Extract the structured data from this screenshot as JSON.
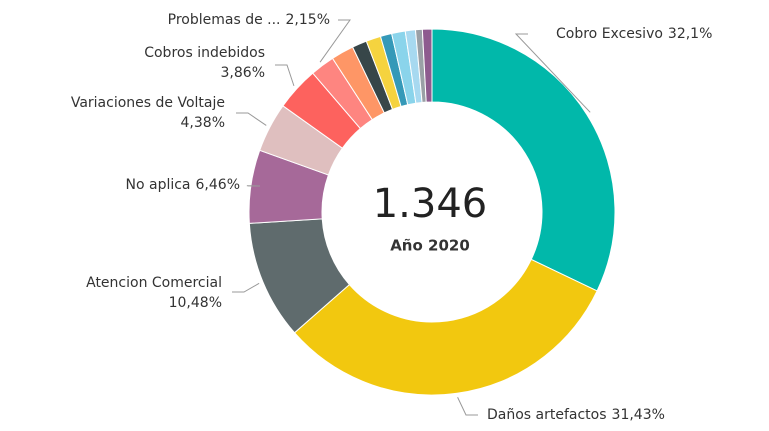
{
  "chart_data": {
    "type": "donut",
    "center_text": "1.346",
    "center_subtitle": "Año 2020",
    "categories": [
      "Cobro Excesivo",
      "Daños artefactos",
      "Atencion Comercial",
      "No aplica",
      "Variaciones de Voltaje",
      "Cobros indebidos",
      "Problemas de ...",
      null,
      null,
      null,
      null,
      null,
      null,
      null,
      null
    ],
    "values": [
      32.1,
      31.43,
      10.48,
      6.46,
      4.38,
      3.86,
      2.15,
      2.0,
      1.3,
      1.3,
      1.0,
      1.2,
      0.9,
      0.6,
      0.84
    ],
    "value_labels": [
      "32,1%",
      "31,43%",
      "10,48%",
      "6,46%",
      "4,38%",
      "3,86%",
      "2,15%",
      null,
      null,
      null,
      null,
      null,
      null,
      null,
      null
    ],
    "colors": [
      "#01b8aa",
      "#f2c80f",
      "#5f6b6d",
      "#a66999",
      "#dfbfbf",
      "#fd625e",
      "#fe8580",
      "#fe9666",
      "#374649",
      "#f5d33f",
      "#3599b8",
      "#8ad4eb",
      "#a7d9f0",
      "#9aa0a6",
      "#8e5b8f"
    ]
  }
}
